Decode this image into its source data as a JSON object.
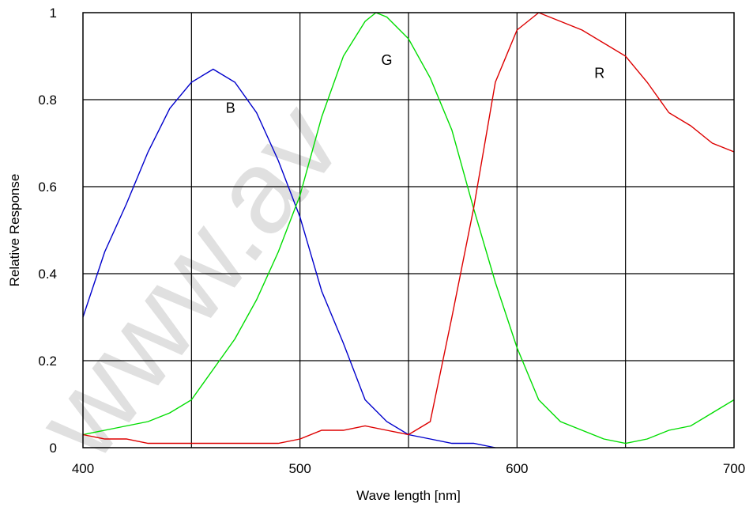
{
  "chart_data": {
    "type": "line",
    "xlabel": "Wave length [nm]",
    "ylabel": "Relative Response",
    "xlim": [
      400,
      700
    ],
    "ylim": [
      0,
      1
    ],
    "xticks": [
      400,
      500,
      600,
      700
    ],
    "xtick_labels": [
      "400",
      "500",
      "600",
      "700"
    ],
    "yticks": [
      0,
      0.2,
      0.4,
      0.6,
      0.8,
      1
    ],
    "ytick_labels": [
      "0",
      "0.2",
      "0.4",
      "0.6",
      "0.8",
      "1"
    ],
    "x_gridlines": [
      450,
      500,
      550,
      600,
      650
    ],
    "y_gridlines": [
      0.2,
      0.4,
      0.6,
      0.8
    ],
    "grid": true,
    "watermark": "www.av",
    "series": [
      {
        "name": "B",
        "color": "#0000cc",
        "label_at": [
          468,
          0.77
        ],
        "points": [
          [
            400,
            0.3
          ],
          [
            410,
            0.45
          ],
          [
            420,
            0.56
          ],
          [
            430,
            0.68
          ],
          [
            440,
            0.78
          ],
          [
            450,
            0.84
          ],
          [
            460,
            0.87
          ],
          [
            470,
            0.84
          ],
          [
            480,
            0.77
          ],
          [
            490,
            0.66
          ],
          [
            500,
            0.53
          ],
          [
            510,
            0.36
          ],
          [
            520,
            0.24
          ],
          [
            530,
            0.11
          ],
          [
            540,
            0.06
          ],
          [
            550,
            0.03
          ],
          [
            560,
            0.02
          ],
          [
            570,
            0.01
          ],
          [
            580,
            0.01
          ],
          [
            590,
            0.0
          ]
        ]
      },
      {
        "name": "G",
        "color": "#00dd00",
        "label_at": [
          540,
          0.88
        ],
        "points": [
          [
            400,
            0.03
          ],
          [
            410,
            0.04
          ],
          [
            420,
            0.05
          ],
          [
            430,
            0.06
          ],
          [
            440,
            0.08
          ],
          [
            450,
            0.11
          ],
          [
            460,
            0.18
          ],
          [
            470,
            0.25
          ],
          [
            480,
            0.34
          ],
          [
            490,
            0.45
          ],
          [
            500,
            0.58
          ],
          [
            510,
            0.76
          ],
          [
            520,
            0.9
          ],
          [
            530,
            0.98
          ],
          [
            535,
            1.0
          ],
          [
            540,
            0.99
          ],
          [
            550,
            0.94
          ],
          [
            560,
            0.85
          ],
          [
            570,
            0.73
          ],
          [
            580,
            0.55
          ],
          [
            590,
            0.38
          ],
          [
            600,
            0.23
          ],
          [
            610,
            0.11
          ],
          [
            620,
            0.06
          ],
          [
            630,
            0.04
          ],
          [
            640,
            0.02
          ],
          [
            650,
            0.01
          ],
          [
            660,
            0.02
          ],
          [
            670,
            0.04
          ],
          [
            680,
            0.05
          ],
          [
            690,
            0.08
          ],
          [
            700,
            0.11
          ]
        ]
      },
      {
        "name": "R",
        "color": "#dd0000",
        "label_at": [
          638,
          0.85
        ],
        "points": [
          [
            400,
            0.03
          ],
          [
            410,
            0.02
          ],
          [
            420,
            0.02
          ],
          [
            430,
            0.01
          ],
          [
            440,
            0.01
          ],
          [
            450,
            0.01
          ],
          [
            460,
            0.01
          ],
          [
            470,
            0.01
          ],
          [
            480,
            0.01
          ],
          [
            490,
            0.01
          ],
          [
            500,
            0.02
          ],
          [
            510,
            0.04
          ],
          [
            520,
            0.04
          ],
          [
            530,
            0.05
          ],
          [
            540,
            0.04
          ],
          [
            550,
            0.03
          ],
          [
            560,
            0.06
          ],
          [
            570,
            0.3
          ],
          [
            580,
            0.55
          ],
          [
            590,
            0.84
          ],
          [
            600,
            0.96
          ],
          [
            610,
            1.0
          ],
          [
            620,
            0.98
          ],
          [
            630,
            0.96
          ],
          [
            640,
            0.93
          ],
          [
            650,
            0.9
          ],
          [
            660,
            0.84
          ],
          [
            670,
            0.77
          ],
          [
            680,
            0.74
          ],
          [
            690,
            0.7
          ],
          [
            700,
            0.68
          ]
        ]
      }
    ]
  }
}
